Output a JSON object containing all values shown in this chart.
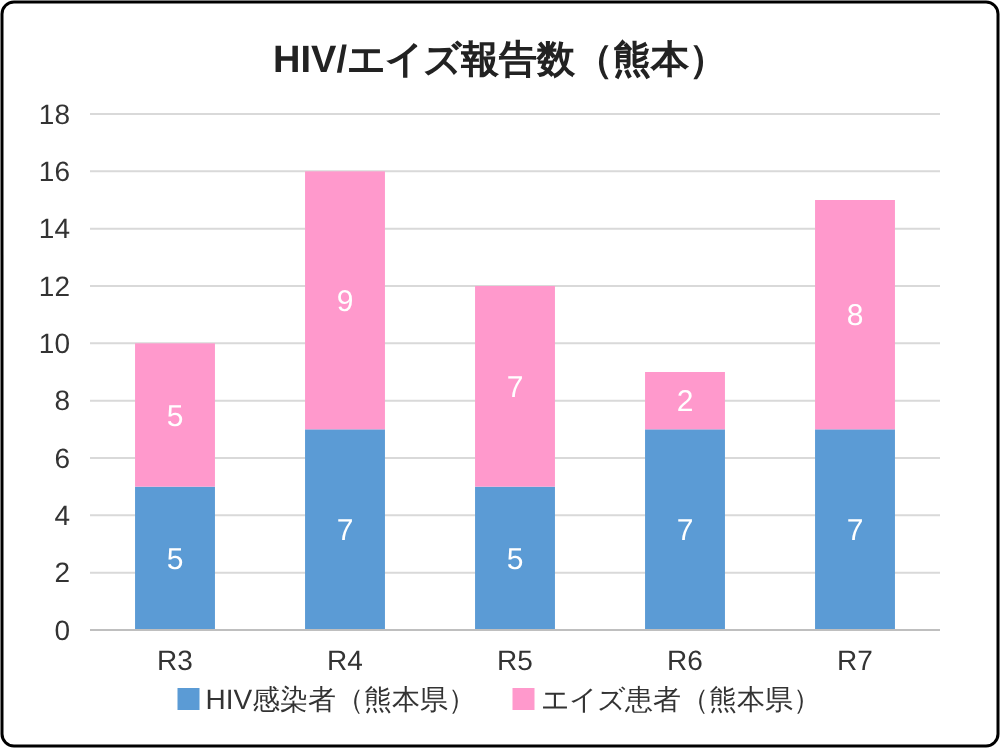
{
  "chart_data": {
    "type": "bar",
    "title": "HIV/エイズ報告数（熊本）",
    "categories": [
      "R3",
      "R4",
      "R5",
      "R6",
      "R7"
    ],
    "stacked": true,
    "data_labels": true,
    "grid": "y",
    "legend": "bottom",
    "ylim": [
      0,
      18
    ],
    "yticks": [
      0,
      2,
      4,
      6,
      8,
      10,
      12,
      14,
      16,
      18
    ],
    "series": [
      {
        "name": "HIV感染者（熊本県）",
        "color": "#5b9bd5",
        "values": [
          5,
          7,
          5,
          7,
          7
        ]
      },
      {
        "name": "エイズ患者（熊本県）",
        "color": "#ff99cc",
        "values": [
          5,
          9,
          7,
          2,
          8
        ]
      }
    ]
  }
}
